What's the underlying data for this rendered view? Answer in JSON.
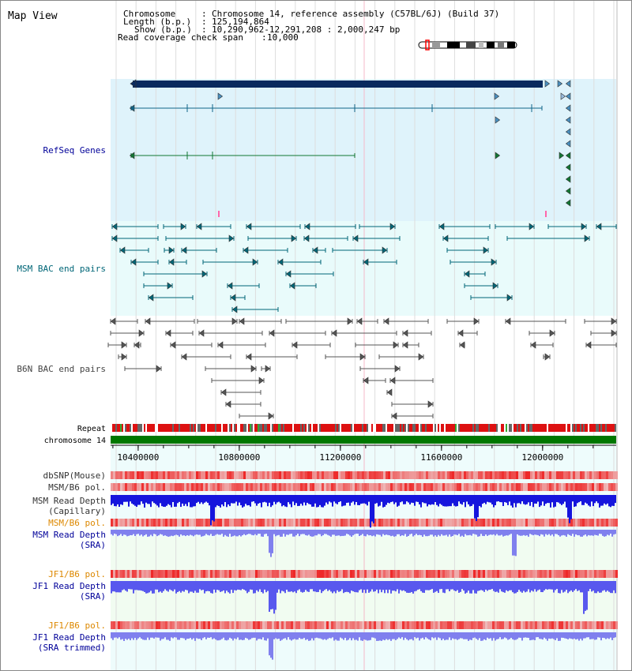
{
  "view_title": "Map View",
  "info": {
    "chromosome_label": "Chromosome",
    "chromosome_value": "Chromosome 14, reference assembly (C57BL/6J) (Build 37)",
    "length_label": "Length (b.p.)",
    "length_value": "125,194,864",
    "show_label": "Show (b.p.)",
    "show_value": "10,290,962-12,291,208 : 2,000,247 bp",
    "coverage_label": "Read coverage check span",
    "coverage_value": "10,000"
  },
  "axis": {
    "start_bp": 10290962,
    "end_bp": 12291208,
    "ticks": [
      {
        "bp": 10400000,
        "label": "10400000"
      },
      {
        "bp": 10800000,
        "label": "10800000"
      },
      {
        "bp": 11200000,
        "label": "11200000"
      },
      {
        "bp": 11600000,
        "label": "11600000"
      },
      {
        "bp": 12000000,
        "label": "12000000"
      }
    ]
  },
  "tracks": {
    "refseq": {
      "label": "RefSeq Genes",
      "color": "#000099"
    },
    "msm_bac": {
      "label": "MSM BAC end pairs",
      "color": "#006677"
    },
    "b6n_bac": {
      "label": "B6N BAC end pairs",
      "color": "#444444"
    },
    "repeat": {
      "label": "Repeat"
    },
    "chrom": {
      "label": "chromosome 14"
    },
    "dbsnp": {
      "label": "dbSNP(Mouse)"
    },
    "msm_b6_pol": {
      "label": "MSM/B6 pol."
    },
    "msm_depth_cap": {
      "label1": "MSM Read Depth",
      "label2": "(Capillary)"
    },
    "msm_b6_pol2": {
      "label": "MSM/B6 pol."
    },
    "msm_depth_sra": {
      "label1": "MSM Read Depth",
      "label2": "(SRA)"
    },
    "jf1_b6_pol": {
      "label": "JF1/B6 pol."
    },
    "jf1_depth_sra": {
      "label1": "JF1 Read Depth",
      "label2": "(SRA)"
    },
    "jf1_b6_pol2": {
      "label": "JF1/B6 pol."
    },
    "jf1_depth_trim": {
      "label1": "JF1 Read Depth",
      "label2": "(SRA trimmed)"
    }
  },
  "colors": {
    "label_gray": "#333333",
    "label_blue": "#000099",
    "label_orange": "#dd8800",
    "label_teal": "#006677",
    "refseq_bg": "#dff3fb",
    "msm_bg": "#e9fbfb",
    "chrom_bar": "#007700",
    "snp_red": "#dd2222",
    "depth_blue": "#1111dd",
    "depth_light": "#7777ee"
  }
}
